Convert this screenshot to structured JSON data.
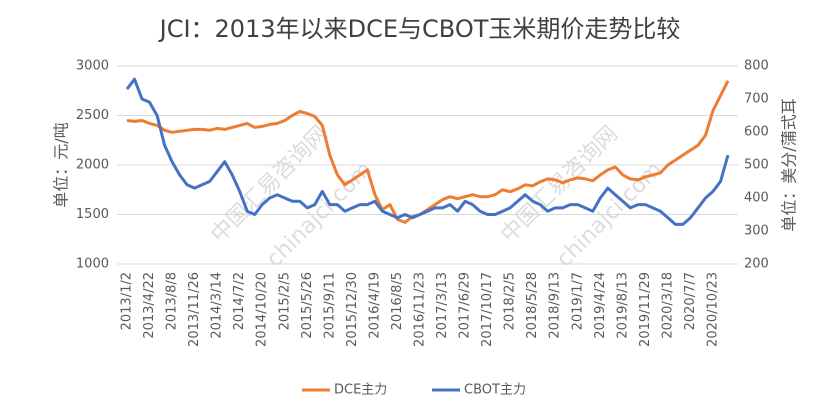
{
  "chart_data": {
    "type": "line",
    "title": "JCI：2013年以来DCE与CBOT玉米期价走势比较",
    "ylabel": "单位：元/吨",
    "y2label": "单位：美分/蒲式耳",
    "watermark": [
      "中国汇易咨询网",
      "chinajci.com"
    ],
    "categories": [
      "2013/1/2",
      null,
      null,
      "2013/4/22",
      null,
      null,
      "2013/8/8",
      null,
      null,
      "2013/11/26",
      null,
      null,
      "2014/3/14",
      null,
      null,
      "2014/7/2",
      null,
      null,
      "2014/10/20",
      null,
      null,
      "2015/2/5",
      null,
      null,
      "2015/5/26",
      null,
      null,
      "2015/9/11",
      null,
      null,
      "2015/12/30",
      null,
      null,
      "2016/4/19",
      null,
      null,
      "2016/8/5",
      null,
      null,
      "2016/11/23",
      null,
      null,
      "2017/3/13",
      null,
      null,
      "2017/6/29",
      null,
      null,
      "2017/10/17",
      null,
      null,
      "2018/2/5",
      null,
      null,
      "2018/5/28",
      null,
      null,
      "2018/9/13",
      null,
      null,
      "2019/1/7",
      null,
      null,
      "2019/4/24",
      null,
      null,
      "2019/8/13",
      null,
      null,
      "2019/11/29",
      null,
      null,
      "2020/3/18",
      null,
      null,
      "2020/7/7",
      null,
      null,
      "2020/10/23",
      null,
      null
    ],
    "series": [
      {
        "name": "DCE主力",
        "color": "#ED7D31",
        "values": [
          2450,
          2440,
          2450,
          2420,
          2400,
          2350,
          2330,
          2340,
          2350,
          2360,
          2360,
          2350,
          2370,
          2360,
          2380,
          2400,
          2420,
          2380,
          2390,
          2410,
          2420,
          2450,
          2500,
          2540,
          2520,
          2490,
          2400,
          2100,
          1900,
          1800,
          1850,
          1900,
          1950,
          1700,
          1550,
          1600,
          1450,
          1420,
          1480,
          1500,
          1550,
          1600,
          1650,
          1680,
          1660,
          1680,
          1700,
          1680,
          1680,
          1700,
          1750,
          1730,
          1760,
          1800,
          1790,
          1830,
          1860,
          1850,
          1820,
          1850,
          1870,
          1860,
          1840,
          1900,
          1950,
          1980,
          1900,
          1860,
          1850,
          1880,
          1900,
          1920,
          2000,
          2050,
          2100,
          2150,
          2200,
          2300,
          2550,
          2700,
          2850
        ]
      },
      {
        "name": "CBOT主力",
        "color": "#4472C4",
        "axis": "y2",
        "values": [
          730,
          760,
          700,
          690,
          650,
          560,
          510,
          470,
          440,
          430,
          440,
          450,
          480,
          510,
          470,
          420,
          360,
          350,
          380,
          400,
          410,
          400,
          390,
          390,
          370,
          380,
          420,
          380,
          380,
          360,
          370,
          380,
          380,
          390,
          360,
          350,
          340,
          350,
          340,
          350,
          360,
          370,
          370,
          380,
          360,
          390,
          380,
          360,
          350,
          350,
          360,
          370,
          390,
          410,
          390,
          380,
          360,
          370,
          370,
          380,
          380,
          370,
          360,
          400,
          430,
          410,
          390,
          370,
          380,
          380,
          370,
          360,
          340,
          320,
          320,
          340,
          370,
          400,
          420,
          450,
          530
        ]
      }
    ],
    "ylim": [
      1000,
      3000
    ],
    "yticks": [
      1000,
      1500,
      2000,
      2500,
      3000
    ],
    "y2lim": [
      200,
      800
    ],
    "y2ticks": [
      200,
      300,
      400,
      500,
      600,
      700,
      800
    ],
    "grid": true,
    "legend": "bottom"
  }
}
